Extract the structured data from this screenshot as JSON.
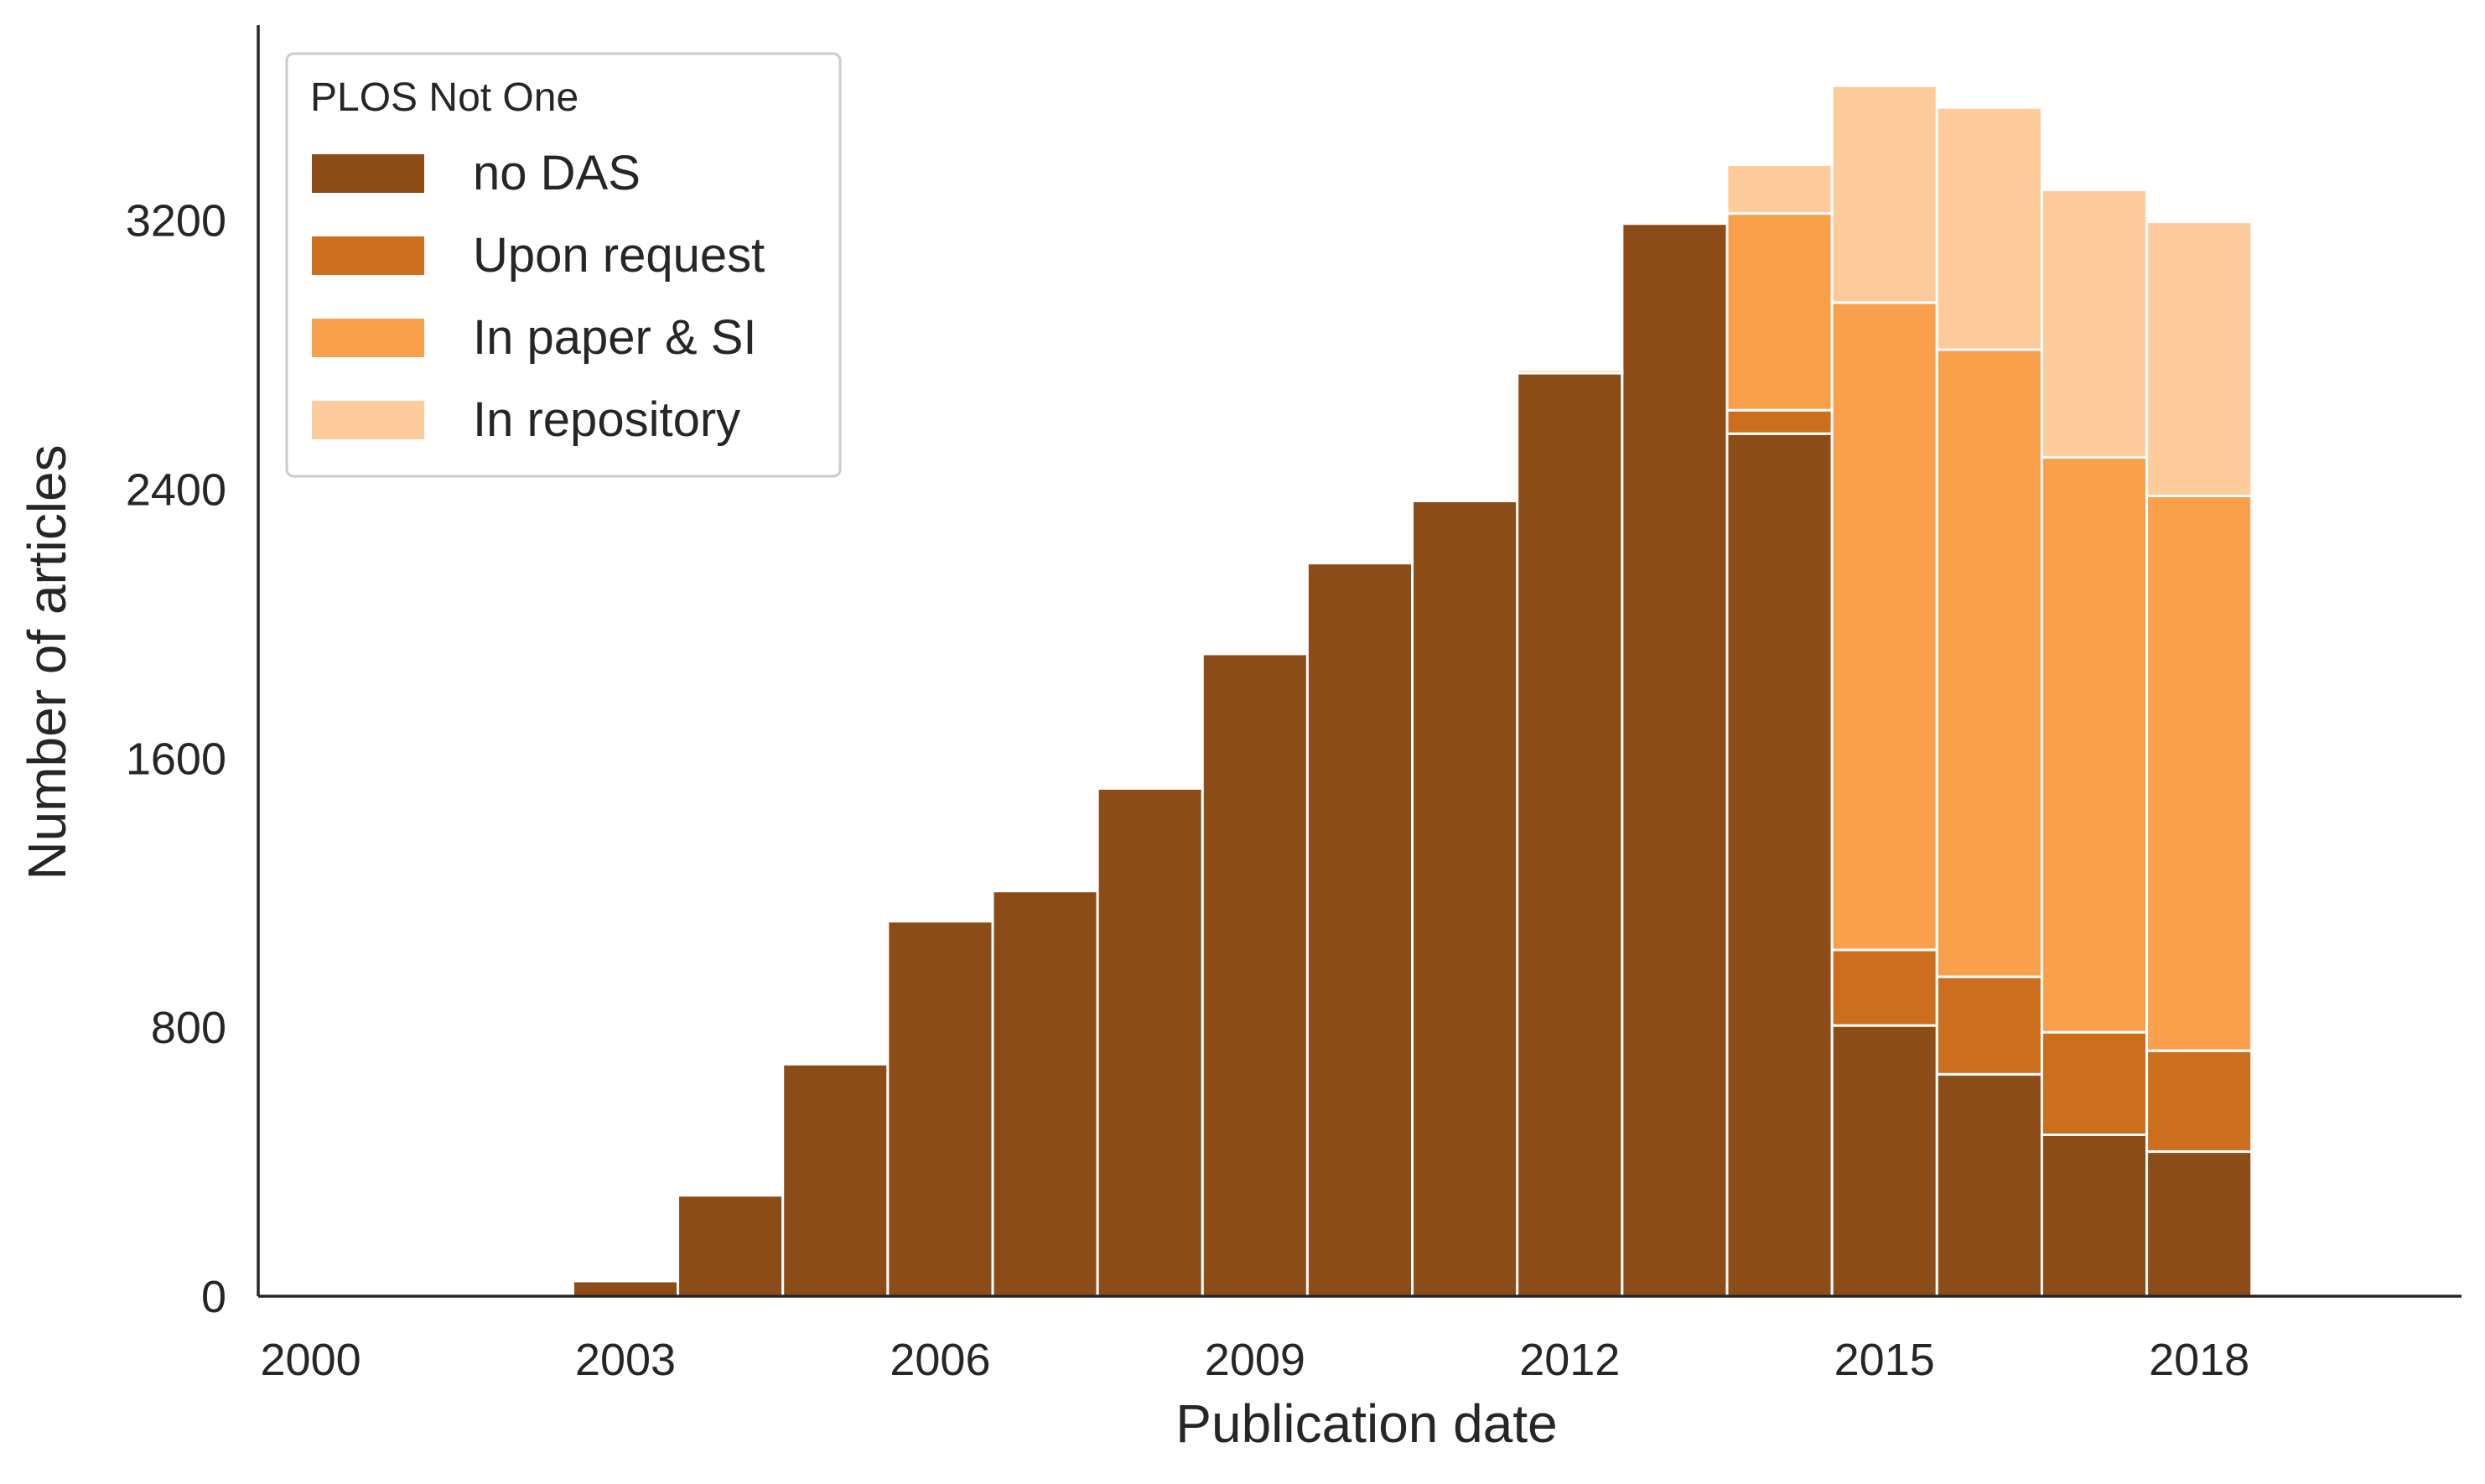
{
  "chart_data": {
    "type": "bar",
    "stacked": true,
    "xlabel": "Publication date",
    "ylabel": "Number of articles",
    "x": [
      2003,
      2004,
      2005,
      2006,
      2007,
      2008,
      2009,
      2010,
      2011,
      2012,
      2013,
      2014,
      2015,
      2016,
      2017,
      2018
    ],
    "xlim": [
      1999.5,
      2020.5
    ],
    "ylim": [
      0,
      3780
    ],
    "xticks": [
      "2000",
      "2003",
      "2006",
      "2009",
      "2012",
      "2015",
      "2018"
    ],
    "yticks": [
      "0",
      "800",
      "1600",
      "2400",
      "3200"
    ],
    "legend": {
      "title": "PLOS Not One",
      "position": "top-left"
    },
    "grid": false,
    "series": [
      {
        "name": "no DAS",
        "color": "#8B4C17",
        "values": [
          45,
          300,
          690,
          1115,
          1205,
          1510,
          1910,
          2180,
          2365,
          2745,
          3190,
          2565,
          805,
          660,
          480,
          430
        ]
      },
      {
        "name": "Upon request",
        "color": "#CB6F1E",
        "values": [
          0,
          0,
          0,
          0,
          0,
          0,
          0,
          0,
          0,
          0,
          0,
          70,
          225,
          290,
          305,
          300
        ]
      },
      {
        "name": "In paper & SI",
        "color": "#F9A04C",
        "values": [
          0,
          0,
          0,
          0,
          0,
          0,
          0,
          0,
          0,
          0,
          5,
          585,
          1925,
          1865,
          1710,
          1650
        ]
      },
      {
        "name": "In repository",
        "color": "#FDCB9C",
        "values": [
          0,
          0,
          0,
          0,
          0,
          0,
          0,
          0,
          0,
          10,
          5,
          145,
          645,
          720,
          795,
          815
        ]
      }
    ]
  }
}
